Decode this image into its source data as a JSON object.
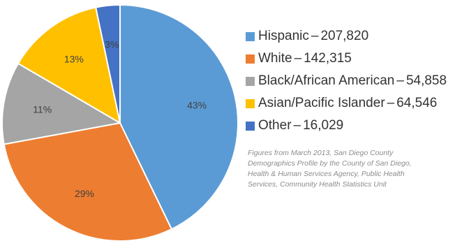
{
  "chart_data": {
    "type": "pie",
    "title": "",
    "slices": [
      {
        "name": "Hispanic",
        "value": 207820,
        "percent_label": "43%",
        "color": "#5b9bd5"
      },
      {
        "name": "White",
        "value": 142315,
        "percent_label": "29%",
        "color": "#ed7d31"
      },
      {
        "name": "Black/African American",
        "value": 54858,
        "percent_label": "11%",
        "color": "#a5a5a5"
      },
      {
        "name": "Asian/Pacific Islander",
        "value": 64546,
        "percent_label": "13%",
        "color": "#ffc000"
      },
      {
        "name": "Other",
        "value": 16029,
        "percent_label": "3%",
        "color": "#4472c4"
      }
    ],
    "legend": {
      "placement": "right",
      "separator": "–",
      "items": [
        {
          "label": "Hispanic",
          "value": "207,820"
        },
        {
          "label": "White",
          "value": "142,315"
        },
        {
          "label": "Black/African American",
          "value": "54,858"
        },
        {
          "label": "Asian/Pacific Islander",
          "value": "64,546"
        },
        {
          "label": "Other",
          "value": "16,029"
        }
      ]
    },
    "note": "Figures from March 2013, San Diego County Demographics Profile by the County of San Diego, Health & Human Services Agency, Public Health Services, Community Health Statistics Unit"
  }
}
